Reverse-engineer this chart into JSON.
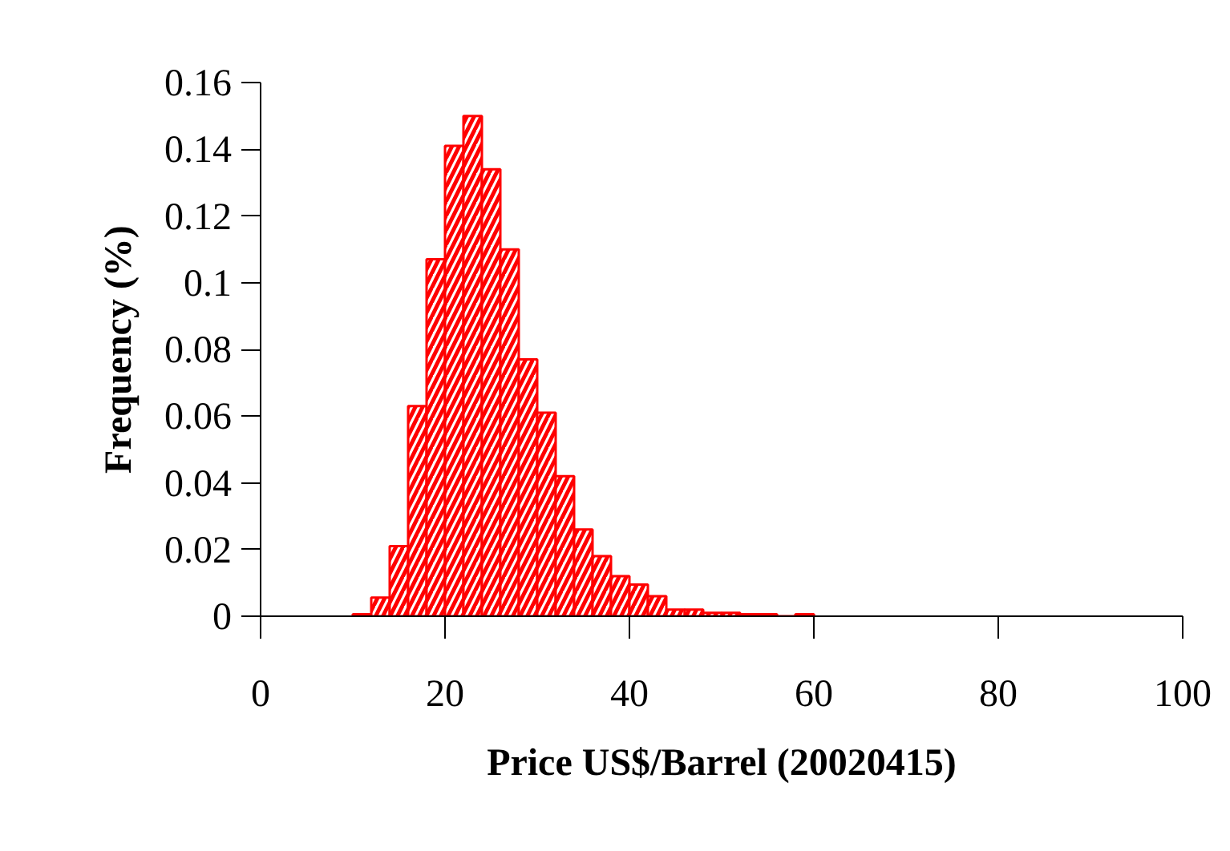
{
  "chart_data": {
    "type": "histogram",
    "xlabel": "Price US$/Barrel (20020415)",
    "ylabel": "Frequency (%)",
    "bins": [
      10,
      12,
      14,
      16,
      18,
      20,
      22,
      24,
      26,
      28,
      30,
      32,
      34,
      36,
      38,
      40,
      42,
      44,
      46,
      48,
      50,
      52,
      54,
      56,
      58,
      60
    ],
    "values": [
      0.0006,
      0.0056,
      0.021,
      0.063,
      0.107,
      0.141,
      0.15,
      0.134,
      0.11,
      0.077,
      0.061,
      0.042,
      0.026,
      0.018,
      0.012,
      0.0095,
      0.006,
      0.002,
      0.002,
      0.001,
      0.001,
      0.0006,
      0.0006,
      0,
      0.0006
    ],
    "color": "#ff0000",
    "xlim": [
      0,
      100
    ],
    "xticks": [
      0,
      20,
      40,
      60,
      80,
      100
    ],
    "ylim": [
      0,
      0.16
    ],
    "yticks": [
      0,
      0.02,
      0.04,
      0.06,
      0.08,
      0.1,
      0.12,
      0.14,
      0.16
    ],
    "grid": false
  }
}
